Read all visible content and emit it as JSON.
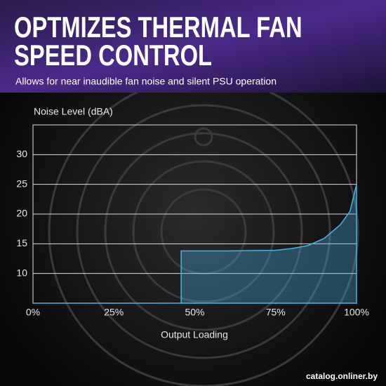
{
  "chart_data": {
    "type": "area",
    "title": [
      "OPTMIZES THERMAL FAN",
      "SPEED CONTROL"
    ],
    "subtitle": "Allows for near inaudible fan noise and silent PSU operation",
    "y_label": "Noise Level (dBA)",
    "x_label": "Output Loading",
    "x": [
      0,
      45.8,
      45.8,
      60,
      75,
      80,
      85,
      90,
      95,
      98,
      100
    ],
    "values": [
      5,
      5,
      13.8,
      13.8,
      13.9,
      14.2,
      14.7,
      15.9,
      18.2,
      20.5,
      25
    ],
    "color": "#4ab3e0",
    "xlim": [
      0,
      100
    ],
    "xticks": [
      {
        "value": 0,
        "label": "0%"
      },
      {
        "value": 25,
        "label": "25%"
      },
      {
        "value": 50,
        "label": "50%"
      },
      {
        "value": 75,
        "label": "75%"
      },
      {
        "value": 100,
        "label": "100%"
      }
    ],
    "ylim": [
      5,
      35
    ],
    "yticks": [
      10,
      15,
      20,
      25,
      30
    ],
    "grid": true
  },
  "watermark": "catalog.onliner.by"
}
